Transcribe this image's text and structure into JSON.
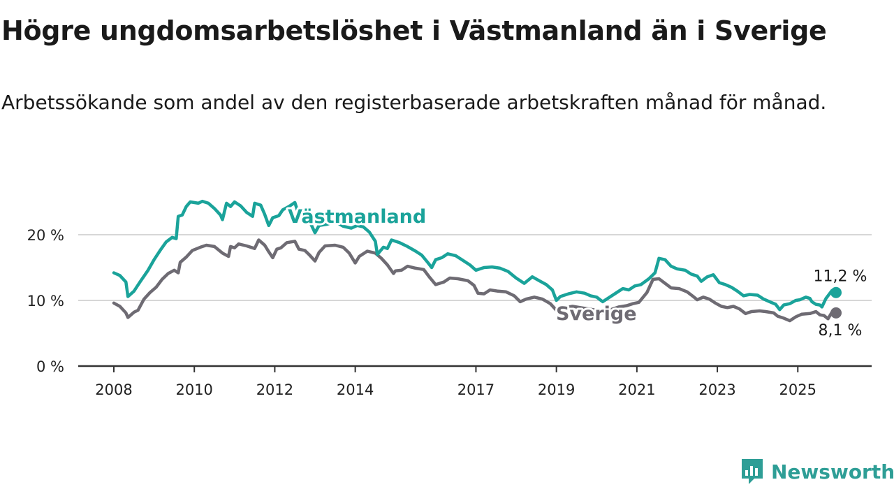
{
  "page": {
    "title": "Högre ungdomsarbetslöshet i Västmanland än i Sverige",
    "subtitle": "Arbetssökande som andel av den registerbaserade arbetskraften månad för månad.",
    "brand": "Newsworthy"
  },
  "colors": {
    "vastmanland": "#1aa39a",
    "sverige": "#6e6b73",
    "grid": "#d7d7d7",
    "axis": "#333333",
    "brand": "#2e9e96"
  },
  "chart_data": {
    "type": "line",
    "xlim": [
      2008,
      2025.95
    ],
    "ylim": [
      0,
      25
    ],
    "x_ticks": [
      2008,
      2010,
      2012,
      2014,
      2017,
      2019,
      2021,
      2023,
      2025
    ],
    "y_ticks": [
      {
        "value": 0,
        "label": "0 %"
      },
      {
        "value": 10,
        "label": "10 %"
      },
      {
        "value": 20,
        "label": "20 %"
      }
    ],
    "grid": "horizontal",
    "series": [
      {
        "name": "Västmanland",
        "end_label": "11,2 %",
        "points": [
          [
            2008.0,
            14.2
          ],
          [
            2008.15,
            13.8
          ],
          [
            2008.3,
            12.8
          ],
          [
            2008.35,
            10.6
          ],
          [
            2008.5,
            11.4
          ],
          [
            2008.65,
            12.8
          ],
          [
            2008.85,
            14.6
          ],
          [
            2009.0,
            16.2
          ],
          [
            2009.15,
            17.6
          ],
          [
            2009.3,
            18.9
          ],
          [
            2009.45,
            19.6
          ],
          [
            2009.55,
            19.4
          ],
          [
            2009.6,
            22.8
          ],
          [
            2009.7,
            23.0
          ],
          [
            2009.8,
            24.3
          ],
          [
            2009.9,
            25.0
          ],
          [
            2010.1,
            24.8
          ],
          [
            2010.2,
            25.1
          ],
          [
            2010.35,
            24.8
          ],
          [
            2010.5,
            24.0
          ],
          [
            2010.65,
            23.0
          ],
          [
            2010.7,
            22.3
          ],
          [
            2010.8,
            24.8
          ],
          [
            2010.9,
            24.3
          ],
          [
            2011.0,
            25.0
          ],
          [
            2011.15,
            24.4
          ],
          [
            2011.3,
            23.4
          ],
          [
            2011.45,
            22.8
          ],
          [
            2011.5,
            24.8
          ],
          [
            2011.65,
            24.5
          ],
          [
            2011.75,
            23.1
          ],
          [
            2011.85,
            21.4
          ],
          [
            2011.95,
            22.6
          ],
          [
            2012.1,
            22.9
          ],
          [
            2012.2,
            23.8
          ],
          [
            2012.35,
            24.3
          ],
          [
            2012.5,
            24.9
          ],
          [
            2012.6,
            23.0
          ],
          [
            2012.75,
            22.6
          ],
          [
            2012.9,
            21.6
          ],
          [
            2013.0,
            20.3
          ],
          [
            2013.1,
            21.4
          ],
          [
            2013.3,
            21.6
          ],
          [
            2013.5,
            22.0
          ],
          [
            2013.7,
            21.3
          ],
          [
            2013.9,
            21.0
          ],
          [
            2014.05,
            21.4
          ],
          [
            2014.2,
            21.2
          ],
          [
            2014.35,
            20.4
          ],
          [
            2014.5,
            19.0
          ],
          [
            2014.55,
            17.0
          ],
          [
            2014.7,
            18.1
          ],
          [
            2014.8,
            17.9
          ],
          [
            2014.9,
            19.2
          ],
          [
            2015.1,
            18.8
          ],
          [
            2015.3,
            18.2
          ],
          [
            2015.5,
            17.5
          ],
          [
            2015.65,
            16.9
          ],
          [
            2015.8,
            15.8
          ],
          [
            2015.9,
            15.0
          ],
          [
            2016.0,
            16.2
          ],
          [
            2016.15,
            16.5
          ],
          [
            2016.3,
            17.1
          ],
          [
            2016.5,
            16.8
          ],
          [
            2016.7,
            16.0
          ],
          [
            2016.85,
            15.4
          ],
          [
            2017.0,
            14.6
          ],
          [
            2017.2,
            15.0
          ],
          [
            2017.4,
            15.1
          ],
          [
            2017.6,
            14.9
          ],
          [
            2017.8,
            14.4
          ],
          [
            2018.0,
            13.4
          ],
          [
            2018.2,
            12.6
          ],
          [
            2018.4,
            13.6
          ],
          [
            2018.6,
            12.9
          ],
          [
            2018.75,
            12.4
          ],
          [
            2018.9,
            11.6
          ],
          [
            2019.0,
            10.0
          ],
          [
            2019.1,
            10.6
          ],
          [
            2019.3,
            11.0
          ],
          [
            2019.5,
            11.3
          ],
          [
            2019.7,
            11.1
          ],
          [
            2019.85,
            10.7
          ],
          [
            2020.0,
            10.5
          ],
          [
            2020.15,
            9.8
          ],
          [
            2020.3,
            10.4
          ],
          [
            2020.5,
            11.2
          ],
          [
            2020.65,
            11.8
          ],
          [
            2020.8,
            11.6
          ],
          [
            2020.95,
            12.2
          ],
          [
            2021.1,
            12.4
          ],
          [
            2021.3,
            13.3
          ],
          [
            2021.45,
            14.2
          ],
          [
            2021.55,
            16.4
          ],
          [
            2021.7,
            16.2
          ],
          [
            2021.85,
            15.2
          ],
          [
            2022.0,
            14.8
          ],
          [
            2022.2,
            14.6
          ],
          [
            2022.35,
            14.0
          ],
          [
            2022.5,
            13.7
          ],
          [
            2022.6,
            12.9
          ],
          [
            2022.75,
            13.6
          ],
          [
            2022.9,
            13.9
          ],
          [
            2023.05,
            12.7
          ],
          [
            2023.2,
            12.4
          ],
          [
            2023.35,
            12.0
          ],
          [
            2023.5,
            11.4
          ],
          [
            2023.65,
            10.7
          ],
          [
            2023.8,
            10.9
          ],
          [
            2024.0,
            10.8
          ],
          [
            2024.15,
            10.2
          ],
          [
            2024.3,
            9.8
          ],
          [
            2024.45,
            9.4
          ],
          [
            2024.55,
            8.6
          ],
          [
            2024.65,
            9.3
          ],
          [
            2024.8,
            9.5
          ],
          [
            2024.95,
            10.0
          ],
          [
            2025.05,
            10.1
          ],
          [
            2025.2,
            10.5
          ],
          [
            2025.3,
            10.3
          ],
          [
            2025.35,
            9.8
          ],
          [
            2025.45,
            9.4
          ],
          [
            2025.55,
            9.3
          ],
          [
            2025.6,
            9.0
          ],
          [
            2025.7,
            10.3
          ],
          [
            2025.85,
            11.5
          ],
          [
            2025.95,
            11.2
          ]
        ]
      },
      {
        "name": "Sverige",
        "end_label": "8,1 %",
        "points": [
          [
            2008.0,
            9.6
          ],
          [
            2008.15,
            9.1
          ],
          [
            2008.3,
            8.1
          ],
          [
            2008.35,
            7.4
          ],
          [
            2008.5,
            8.2
          ],
          [
            2008.6,
            8.5
          ],
          [
            2008.75,
            10.2
          ],
          [
            2008.9,
            11.2
          ],
          [
            2009.05,
            12.0
          ],
          [
            2009.2,
            13.2
          ],
          [
            2009.35,
            14.1
          ],
          [
            2009.5,
            14.6
          ],
          [
            2009.6,
            14.2
          ],
          [
            2009.65,
            15.8
          ],
          [
            2009.8,
            16.6
          ],
          [
            2009.95,
            17.6
          ],
          [
            2010.15,
            18.1
          ],
          [
            2010.3,
            18.4
          ],
          [
            2010.5,
            18.2
          ],
          [
            2010.7,
            17.2
          ],
          [
            2010.85,
            16.7
          ],
          [
            2010.9,
            18.2
          ],
          [
            2011.0,
            18.0
          ],
          [
            2011.1,
            18.6
          ],
          [
            2011.3,
            18.3
          ],
          [
            2011.5,
            17.9
          ],
          [
            2011.6,
            19.2
          ],
          [
            2011.75,
            18.4
          ],
          [
            2011.85,
            17.4
          ],
          [
            2011.95,
            16.5
          ],
          [
            2012.05,
            17.8
          ],
          [
            2012.15,
            18.0
          ],
          [
            2012.3,
            18.8
          ],
          [
            2012.5,
            19.0
          ],
          [
            2012.6,
            17.8
          ],
          [
            2012.75,
            17.6
          ],
          [
            2012.85,
            17.0
          ],
          [
            2013.0,
            16.0
          ],
          [
            2013.1,
            17.3
          ],
          [
            2013.25,
            18.3
          ],
          [
            2013.5,
            18.4
          ],
          [
            2013.7,
            18.1
          ],
          [
            2013.85,
            17.2
          ],
          [
            2014.0,
            15.7
          ],
          [
            2014.1,
            16.7
          ],
          [
            2014.3,
            17.5
          ],
          [
            2014.5,
            17.2
          ],
          [
            2014.65,
            16.4
          ],
          [
            2014.8,
            15.4
          ],
          [
            2014.95,
            14.1
          ],
          [
            2015.0,
            14.5
          ],
          [
            2015.15,
            14.6
          ],
          [
            2015.3,
            15.2
          ],
          [
            2015.5,
            14.9
          ],
          [
            2015.7,
            14.7
          ],
          [
            2015.85,
            13.5
          ],
          [
            2016.0,
            12.4
          ],
          [
            2016.2,
            12.8
          ],
          [
            2016.35,
            13.4
          ],
          [
            2016.55,
            13.3
          ],
          [
            2016.8,
            13.0
          ],
          [
            2016.95,
            12.3
          ],
          [
            2017.05,
            11.1
          ],
          [
            2017.2,
            11.0
          ],
          [
            2017.35,
            11.6
          ],
          [
            2017.55,
            11.4
          ],
          [
            2017.75,
            11.3
          ],
          [
            2017.95,
            10.7
          ],
          [
            2018.1,
            9.8
          ],
          [
            2018.25,
            10.2
          ],
          [
            2018.45,
            10.5
          ],
          [
            2018.65,
            10.2
          ],
          [
            2018.85,
            9.5
          ],
          [
            2019.0,
            8.5
          ],
          [
            2019.2,
            8.9
          ],
          [
            2019.4,
            9.1
          ],
          [
            2019.6,
            8.9
          ],
          [
            2019.8,
            8.7
          ],
          [
            2020.0,
            8.5
          ],
          [
            2020.15,
            8.1
          ],
          [
            2020.35,
            8.6
          ],
          [
            2020.55,
            9.0
          ],
          [
            2020.75,
            9.2
          ],
          [
            2020.9,
            9.5
          ],
          [
            2021.05,
            9.7
          ],
          [
            2021.25,
            11.2
          ],
          [
            2021.4,
            13.2
          ],
          [
            2021.55,
            13.3
          ],
          [
            2021.7,
            12.6
          ],
          [
            2021.85,
            11.9
          ],
          [
            2022.05,
            11.8
          ],
          [
            2022.25,
            11.3
          ],
          [
            2022.4,
            10.6
          ],
          [
            2022.5,
            10.1
          ],
          [
            2022.65,
            10.5
          ],
          [
            2022.8,
            10.2
          ],
          [
            2022.95,
            9.6
          ],
          [
            2023.1,
            9.1
          ],
          [
            2023.25,
            8.9
          ],
          [
            2023.4,
            9.1
          ],
          [
            2023.55,
            8.7
          ],
          [
            2023.7,
            8.0
          ],
          [
            2023.85,
            8.3
          ],
          [
            2024.05,
            8.4
          ],
          [
            2024.2,
            8.3
          ],
          [
            2024.4,
            8.1
          ],
          [
            2024.5,
            7.6
          ],
          [
            2024.65,
            7.3
          ],
          [
            2024.8,
            6.9
          ],
          [
            2024.95,
            7.5
          ],
          [
            2025.1,
            7.9
          ],
          [
            2025.3,
            8.0
          ],
          [
            2025.45,
            8.3
          ],
          [
            2025.55,
            7.8
          ],
          [
            2025.65,
            7.7
          ],
          [
            2025.75,
            7.2
          ],
          [
            2025.85,
            8.2
          ],
          [
            2025.95,
            8.1
          ]
        ]
      }
    ]
  }
}
